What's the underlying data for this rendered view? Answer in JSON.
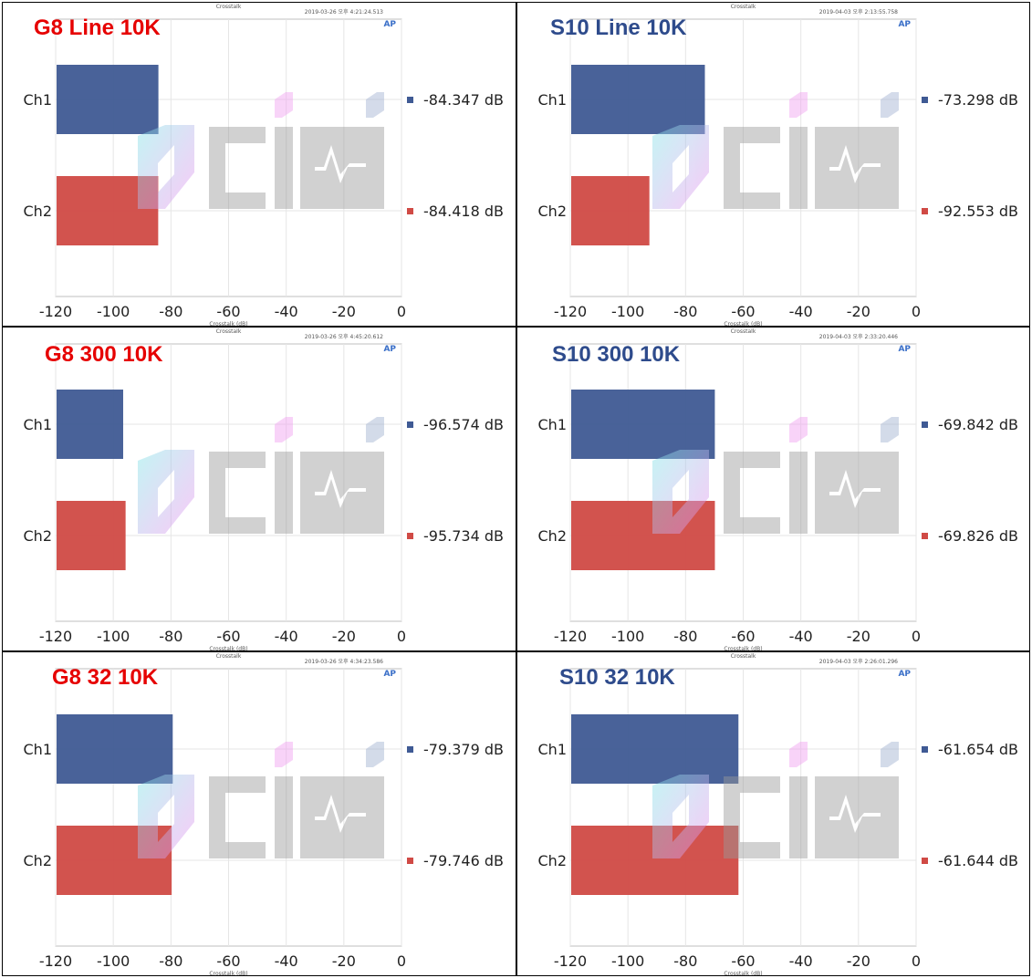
{
  "chart_data": [
    {
      "type": "bar",
      "orientation": "horizontal",
      "title": "G8 Line 10K",
      "title_color": "#e60000",
      "header": "Crosstalk",
      "timestamp": "2019-03-26 오후 4:21:24.513",
      "xlabel": "Crosstalk (dB)",
      "xlim": [
        -120,
        0
      ],
      "xticks": [
        -120,
        -100,
        -80,
        -60,
        -40,
        -20,
        0
      ],
      "categories": [
        "Ch1",
        "Ch2"
      ],
      "values": [
        -84.347,
        -84.418
      ],
      "value_labels": [
        "-84.347 dB",
        "-84.418 dB"
      ],
      "colors": [
        "#3f5a94",
        "#d04a45"
      ]
    },
    {
      "type": "bar",
      "orientation": "horizontal",
      "title": "S10 Line 10K",
      "title_color": "#2e4b8c",
      "header": "Crosstalk",
      "timestamp": "2019-04-03 오후 2:13:55.758",
      "xlabel": "Crosstalk (dB)",
      "xlim": [
        -120,
        0
      ],
      "xticks": [
        -120,
        -100,
        -80,
        -60,
        -40,
        -20,
        0
      ],
      "categories": [
        "Ch1",
        "Ch2"
      ],
      "values": [
        -73.298,
        -92.553
      ],
      "value_labels": [
        "-73.298 dB",
        "-92.553 dB"
      ],
      "colors": [
        "#3f5a94",
        "#d04a45"
      ]
    },
    {
      "type": "bar",
      "orientation": "horizontal",
      "title": "G8 300 10K",
      "title_color": "#e60000",
      "header": "Crosstalk",
      "timestamp": "2019-03-26 오후 4:45:20.612",
      "xlabel": "Crosstalk (dB)",
      "xlim": [
        -120,
        0
      ],
      "xticks": [
        -120,
        -100,
        -80,
        -60,
        -40,
        -20,
        0
      ],
      "categories": [
        "Ch1",
        "Ch2"
      ],
      "values": [
        -96.574,
        -95.734
      ],
      "value_labels": [
        "-96.574 dB",
        "-95.734 dB"
      ],
      "colors": [
        "#3f5a94",
        "#d04a45"
      ]
    },
    {
      "type": "bar",
      "orientation": "horizontal",
      "title": "S10 300 10K",
      "title_color": "#2e4b8c",
      "header": "Crosstalk",
      "timestamp": "2019-04-03 오후 2:33:20.446",
      "xlabel": "Crosstalk (dB)",
      "xlim": [
        -120,
        0
      ],
      "xticks": [
        -120,
        -100,
        -80,
        -60,
        -40,
        -20,
        0
      ],
      "categories": [
        "Ch1",
        "Ch2"
      ],
      "values": [
        -69.842,
        -69.826
      ],
      "value_labels": [
        "-69.842 dB",
        "-69.826 dB"
      ],
      "colors": [
        "#3f5a94",
        "#d04a45"
      ]
    },
    {
      "type": "bar",
      "orientation": "horizontal",
      "title": "G8 32 10K",
      "title_color": "#e60000",
      "header": "Crosstalk",
      "timestamp": "2019-03-26 오후 4:34:23.586",
      "xlabel": "Crosstalk (dB)",
      "xlim": [
        -120,
        0
      ],
      "xticks": [
        -120,
        -100,
        -80,
        -60,
        -40,
        -20,
        0
      ],
      "categories": [
        "Ch1",
        "Ch2"
      ],
      "values": [
        -79.379,
        -79.746
      ],
      "value_labels": [
        "-79.379 dB",
        "-79.746 dB"
      ],
      "colors": [
        "#3f5a94",
        "#d04a45"
      ]
    },
    {
      "type": "bar",
      "orientation": "horizontal",
      "title": "S10 32 10K",
      "title_color": "#2e4b8c",
      "header": "Crosstalk",
      "timestamp": "2019-04-03 오후 2:26:01.296",
      "xlabel": "Crosstalk (dB)",
      "xlim": [
        -120,
        0
      ],
      "xticks": [
        -120,
        -100,
        -80,
        -60,
        -40,
        -20,
        0
      ],
      "categories": [
        "Ch1",
        "Ch2"
      ],
      "values": [
        -61.654,
        -61.644
      ],
      "value_labels": [
        "-61.654 dB",
        "-61.644 dB"
      ],
      "colors": [
        "#3f5a94",
        "#d04a45"
      ]
    }
  ],
  "logo_badge": "AP"
}
